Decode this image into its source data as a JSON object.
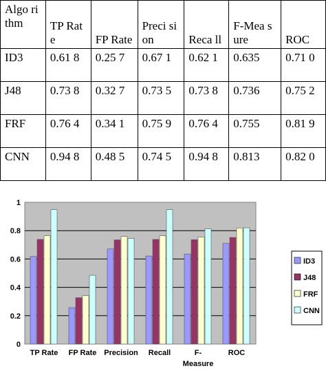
{
  "table": {
    "headers": [
      "Algo rithm",
      "TP Rate",
      "FP Rate",
      "Preci sion",
      "Reca ll",
      "F-Mea sure",
      "ROC"
    ],
    "rows": [
      [
        "ID3",
        "0.61 8",
        "0.25 7",
        "0.67 1",
        "0.62 1",
        "0.635",
        "0.71 0"
      ],
      [
        "J48",
        "0.73 8",
        "0.32 7",
        "0.73 5",
        "0.73 8",
        "0.736",
        "0.75 2"
      ],
      [
        "FRF",
        "0.76 4",
        "0.34 1",
        "0.75 9",
        "0.76 4",
        "0.755",
        "0.81 9"
      ],
      [
        "CNN",
        "0.94 8",
        "0.48 5",
        "0.74 5",
        "0.94 8",
        "0.813",
        "0.82 0"
      ]
    ]
  },
  "chart_data": {
    "type": "bar",
    "categories": [
      "TP Rate",
      "FP Rate",
      "Precision",
      "Recall",
      "F-Measure",
      "ROC"
    ],
    "series": [
      {
        "name": "ID3",
        "color": "#9999ff",
        "values": [
          0.618,
          0.257,
          0.671,
          0.621,
          0.635,
          0.71
        ]
      },
      {
        "name": "J48",
        "color": "#993366",
        "values": [
          0.738,
          0.327,
          0.735,
          0.738,
          0.736,
          0.752
        ]
      },
      {
        "name": "FRF",
        "color": "#ffffcc",
        "values": [
          0.764,
          0.341,
          0.759,
          0.764,
          0.755,
          0.819
        ]
      },
      {
        "name": "CNN",
        "color": "#ccffff",
        "values": [
          0.948,
          0.485,
          0.745,
          0.948,
          0.813,
          0.82
        ]
      }
    ],
    "ylim": [
      0,
      1
    ],
    "yticks": [
      "0",
      "0.2",
      "0.4",
      "0.6",
      "0.8",
      "1"
    ],
    "grid": true,
    "plot_background": "#c0c0c0",
    "legend_position": "right"
  }
}
